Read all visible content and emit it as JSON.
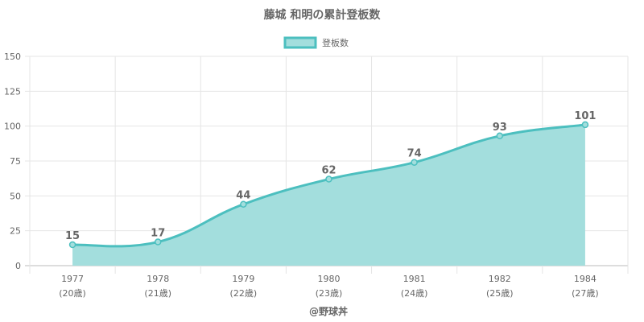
{
  "chart_data": {
    "type": "area",
    "title": "藤城 和明の累計登板数",
    "legend": {
      "label": "登板数",
      "position": "top-center"
    },
    "categories": [
      {
        "year": "1977",
        "age": "(20歳)"
      },
      {
        "year": "1978",
        "age": "(21歳)"
      },
      {
        "year": "1979",
        "age": "(22歳)"
      },
      {
        "year": "1980",
        "age": "(23歳)"
      },
      {
        "year": "1981",
        "age": "(24歳)"
      },
      {
        "year": "1982",
        "age": "(25歳)"
      },
      {
        "year": "1984",
        "age": "(27歳)"
      }
    ],
    "series": [
      {
        "name": "登板数",
        "values": [
          15,
          17,
          44,
          62,
          74,
          93,
          101
        ]
      }
    ],
    "ylim": [
      0,
      150
    ],
    "yticks": [
      0,
      25,
      50,
      75,
      100,
      125,
      150
    ],
    "grid": true,
    "data_labels": true,
    "credit": "@野球丼",
    "colors": {
      "fill": "#a3dedd",
      "line": "#4cbfbf",
      "grid": "#e5e5e5",
      "text": "#666666"
    }
  }
}
